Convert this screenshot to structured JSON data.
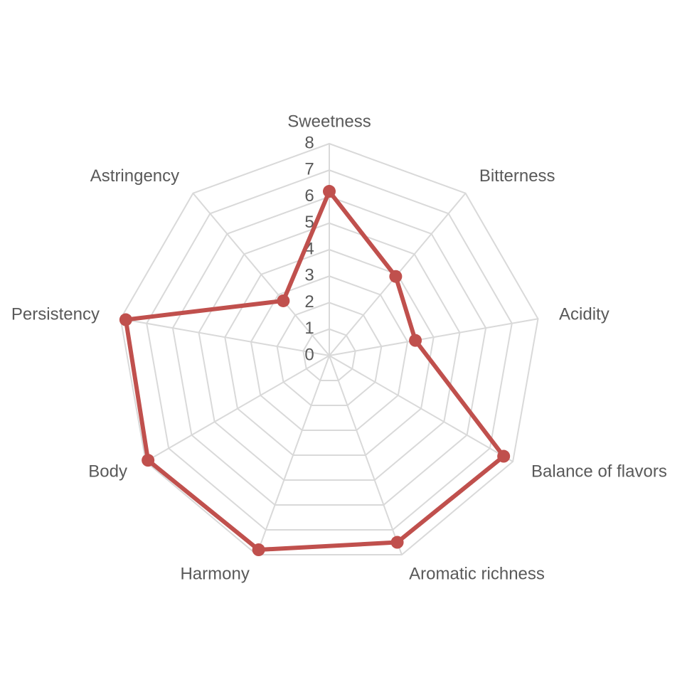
{
  "chart_data": {
    "type": "radar",
    "categories": [
      "Sweetness",
      "Bitterness",
      "Acidity",
      "Balance of flavors",
      "Aromatic richness",
      "Harmony",
      "Body",
      "Persistency",
      "Astringency"
    ],
    "series": [
      {
        "color": "#c0504d",
        "values": [
          6.2,
          3.9,
          3.3,
          7.6,
          7.5,
          7.8,
          7.9,
          7.8,
          2.7
        ]
      }
    ],
    "ylim": [
      0,
      8
    ],
    "yticks": [
      0,
      1,
      2,
      3,
      4,
      5,
      6,
      7,
      8
    ],
    "grid": true
  }
}
